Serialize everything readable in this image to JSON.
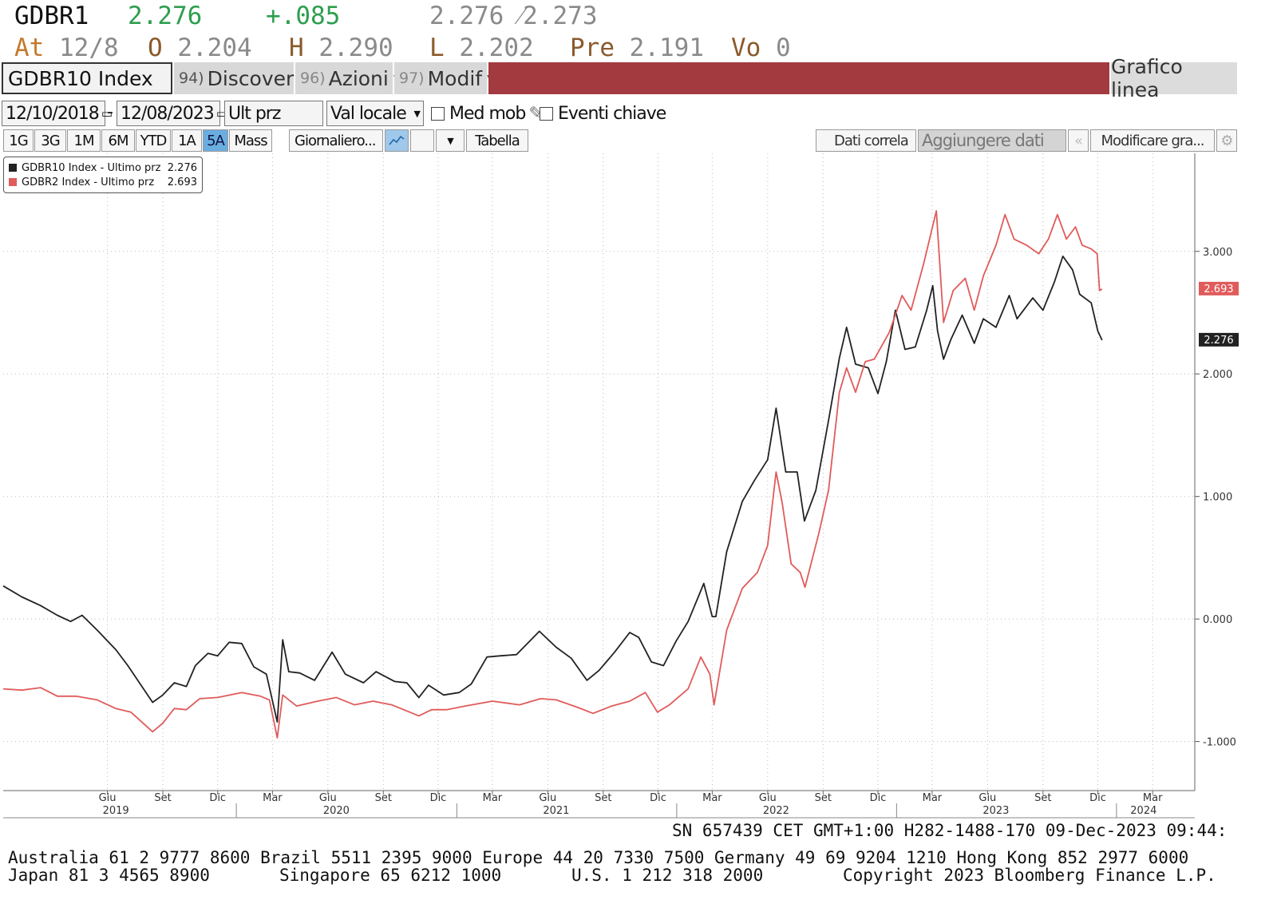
{
  "header": {
    "ticker": "GDBR1",
    "last": "2.276",
    "change": "+.085",
    "bid_ask": "2.276 ⁄2.273",
    "at_label": "At",
    "at_value": "12/8",
    "open_label": "O",
    "open_value": "2.204",
    "high_label": "H",
    "high_value": "2.290",
    "low_label": "L",
    "low_value": "2.202",
    "prev_label": "Pre",
    "prev_value": "2.191",
    "vol_label": "Vo",
    "vol_value": "0"
  },
  "toolbar": {
    "security": "GDBR10 Index",
    "discover_num": "94)",
    "discover": "Discover",
    "azioni_num": "96)",
    "azioni": "Azioni",
    "modif_num": "97)",
    "modif": "Modif",
    "chart_type": "Grafico linea",
    "accent_color": "#a33a3f"
  },
  "controls": {
    "start_date": "12/10/2018",
    "separator": "-",
    "end_date": "12/08/2023",
    "price_field": "Ult prz",
    "currency": "Val locale",
    "moving_avg": "Med mob",
    "key_events": "Eventi chiave"
  },
  "periods": [
    "1G",
    "3G",
    "1M",
    "6M",
    "YTD",
    "1A",
    "5A",
    "Mass"
  ],
  "active_period": "5A",
  "frequency": "Giornaliero...",
  "table_btn": "Tabella",
  "dati_correla": "Dati correla",
  "aggiungere_dati": "Aggiungere dati",
  "modificare": "Modificare gra...",
  "chart_data": {
    "type": "line",
    "x_start": "2018-12-10",
    "x_end": "2023-12-08",
    "xlim": [
      "2018-12-10",
      "2024-05-10"
    ],
    "ylim": [
      -1.4,
      3.8
    ],
    "yticks": [
      -1.0,
      0.0,
      1.0,
      2.0,
      3.0
    ],
    "ytick_labels": [
      "-1.000",
      "0.000",
      "1.000",
      "2.000",
      "3.000"
    ],
    "xticks": [
      {
        "label": "Giu",
        "date": "2019-06-01"
      },
      {
        "label": "Set",
        "date": "2019-09-01"
      },
      {
        "label": "Dic",
        "date": "2019-12-01"
      },
      {
        "label": "Mar",
        "date": "2020-03-01"
      },
      {
        "label": "Giu",
        "date": "2020-06-01"
      },
      {
        "label": "Set",
        "date": "2020-09-01"
      },
      {
        "label": "Dic",
        "date": "2020-12-01"
      },
      {
        "label": "Mar",
        "date": "2021-03-01"
      },
      {
        "label": "Giu",
        "date": "2021-06-01"
      },
      {
        "label": "Set",
        "date": "2021-09-01"
      },
      {
        "label": "Dic",
        "date": "2021-12-01"
      },
      {
        "label": "Mar",
        "date": "2022-03-01"
      },
      {
        "label": "Giu",
        "date": "2022-06-01"
      },
      {
        "label": "Set",
        "date": "2022-09-01"
      },
      {
        "label": "Dic",
        "date": "2022-12-01"
      },
      {
        "label": "Mar",
        "date": "2023-03-01"
      },
      {
        "label": "Giu",
        "date": "2023-06-01"
      },
      {
        "label": "Set",
        "date": "2023-09-01"
      },
      {
        "label": "Dic",
        "date": "2023-12-01"
      },
      {
        "label": "Mar",
        "date": "2024-03-01"
      }
    ],
    "years": [
      {
        "label": "2019",
        "date": "2019-06-15"
      },
      {
        "label": "2020",
        "date": "2020-06-15"
      },
      {
        "label": "2021",
        "date": "2021-06-15"
      },
      {
        "label": "2022",
        "date": "2022-06-15"
      },
      {
        "label": "2023",
        "date": "2023-06-15"
      },
      {
        "label": "2024",
        "date": "2024-02-15"
      }
    ],
    "year_boundaries": [
      "2020-01-01",
      "2021-01-01",
      "2022-01-01",
      "2023-01-01",
      "2024-01-01"
    ],
    "grid": true,
    "legend_position": "top-left",
    "series": [
      {
        "name": "GDBR10 Index - Ultimo prz",
        "last_label": "2.276",
        "color": "#222222",
        "points": [
          [
            "2018-12-10",
            0.27
          ],
          [
            "2019-01-10",
            0.18
          ],
          [
            "2019-02-10",
            0.11
          ],
          [
            "2019-03-10",
            0.03
          ],
          [
            "2019-04-01",
            -0.02
          ],
          [
            "2019-04-20",
            0.03
          ],
          [
            "2019-05-15",
            -0.09
          ],
          [
            "2019-06-15",
            -0.25
          ],
          [
            "2019-07-05",
            -0.38
          ],
          [
            "2019-08-15",
            -0.68
          ],
          [
            "2019-09-01",
            -0.62
          ],
          [
            "2019-09-20",
            -0.52
          ],
          [
            "2019-10-10",
            -0.55
          ],
          [
            "2019-10-25",
            -0.38
          ],
          [
            "2019-11-15",
            -0.28
          ],
          [
            "2019-12-01",
            -0.3
          ],
          [
            "2019-12-20",
            -0.19
          ],
          [
            "2020-01-10",
            -0.2
          ],
          [
            "2020-01-30",
            -0.39
          ],
          [
            "2020-02-20",
            -0.45
          ],
          [
            "2020-03-09",
            -0.84
          ],
          [
            "2020-03-18",
            -0.17
          ],
          [
            "2020-03-28",
            -0.43
          ],
          [
            "2020-04-15",
            -0.44
          ],
          [
            "2020-05-10",
            -0.5
          ],
          [
            "2020-06-08",
            -0.27
          ],
          [
            "2020-06-30",
            -0.45
          ],
          [
            "2020-07-30",
            -0.52
          ],
          [
            "2020-08-20",
            -0.43
          ],
          [
            "2020-09-20",
            -0.51
          ],
          [
            "2020-10-10",
            -0.52
          ],
          [
            "2020-10-30",
            -0.64
          ],
          [
            "2020-11-15",
            -0.54
          ],
          [
            "2020-12-10",
            -0.62
          ],
          [
            "2021-01-05",
            -0.6
          ],
          [
            "2021-01-25",
            -0.53
          ],
          [
            "2021-02-20",
            -0.31
          ],
          [
            "2021-03-15",
            -0.3
          ],
          [
            "2021-04-10",
            -0.29
          ],
          [
            "2021-05-18",
            -0.1
          ],
          [
            "2021-06-15",
            -0.23
          ],
          [
            "2021-07-10",
            -0.32
          ],
          [
            "2021-08-05",
            -0.5
          ],
          [
            "2021-08-25",
            -0.42
          ],
          [
            "2021-09-20",
            -0.27
          ],
          [
            "2021-10-15",
            -0.11
          ],
          [
            "2021-10-30",
            -0.15
          ],
          [
            "2021-11-20",
            -0.35
          ],
          [
            "2021-12-10",
            -0.38
          ],
          [
            "2021-12-31",
            -0.18
          ],
          [
            "2022-01-20",
            -0.02
          ],
          [
            "2022-02-15",
            0.29
          ],
          [
            "2022-03-01",
            0.02
          ],
          [
            "2022-03-07",
            0.02
          ],
          [
            "2022-03-25",
            0.55
          ],
          [
            "2022-04-20",
            0.96
          ],
          [
            "2022-05-10",
            1.13
          ],
          [
            "2022-06-01",
            1.3
          ],
          [
            "2022-06-15",
            1.72
          ],
          [
            "2022-07-01",
            1.2
          ],
          [
            "2022-07-20",
            1.2
          ],
          [
            "2022-08-01",
            0.8
          ],
          [
            "2022-08-20",
            1.05
          ],
          [
            "2022-09-10",
            1.62
          ],
          [
            "2022-09-28",
            2.13
          ],
          [
            "2022-10-10",
            2.38
          ],
          [
            "2022-10-25",
            2.08
          ],
          [
            "2022-11-15",
            2.05
          ],
          [
            "2022-12-01",
            1.84
          ],
          [
            "2022-12-15",
            2.1
          ],
          [
            "2022-12-30",
            2.52
          ],
          [
            "2023-01-15",
            2.2
          ],
          [
            "2023-02-01",
            2.22
          ],
          [
            "2023-02-20",
            2.52
          ],
          [
            "2023-03-02",
            2.72
          ],
          [
            "2023-03-10",
            2.35
          ],
          [
            "2023-03-20",
            2.12
          ],
          [
            "2023-04-01",
            2.28
          ],
          [
            "2023-04-20",
            2.48
          ],
          [
            "2023-05-10",
            2.25
          ],
          [
            "2023-05-25",
            2.45
          ],
          [
            "2023-06-15",
            2.38
          ],
          [
            "2023-07-07",
            2.64
          ],
          [
            "2023-07-20",
            2.45
          ],
          [
            "2023-08-15",
            2.62
          ],
          [
            "2023-09-01",
            2.52
          ],
          [
            "2023-09-20",
            2.75
          ],
          [
            "2023-10-04",
            2.96
          ],
          [
            "2023-10-20",
            2.85
          ],
          [
            "2023-11-01",
            2.65
          ],
          [
            "2023-11-20",
            2.58
          ],
          [
            "2023-12-01",
            2.35
          ],
          [
            "2023-12-08",
            2.276
          ]
        ]
      },
      {
        "name": "GDBR2 Index - Ultimo prz",
        "last_label": "2.693",
        "color": "#e05b5b",
        "points": [
          [
            "2018-12-10",
            -0.57
          ],
          [
            "2019-01-10",
            -0.58
          ],
          [
            "2019-02-10",
            -0.56
          ],
          [
            "2019-03-10",
            -0.63
          ],
          [
            "2019-04-10",
            -0.63
          ],
          [
            "2019-05-15",
            -0.66
          ],
          [
            "2019-06-15",
            -0.73
          ],
          [
            "2019-07-10",
            -0.76
          ],
          [
            "2019-08-15",
            -0.92
          ],
          [
            "2019-09-01",
            -0.85
          ],
          [
            "2019-09-20",
            -0.73
          ],
          [
            "2019-10-10",
            -0.74
          ],
          [
            "2019-11-01",
            -0.65
          ],
          [
            "2019-12-01",
            -0.64
          ],
          [
            "2020-01-10",
            -0.6
          ],
          [
            "2020-02-10",
            -0.63
          ],
          [
            "2020-02-25",
            -0.66
          ],
          [
            "2020-03-09",
            -0.97
          ],
          [
            "2020-03-18",
            -0.62
          ],
          [
            "2020-04-10",
            -0.71
          ],
          [
            "2020-05-15",
            -0.67
          ],
          [
            "2020-06-15",
            -0.64
          ],
          [
            "2020-07-15",
            -0.7
          ],
          [
            "2020-08-15",
            -0.67
          ],
          [
            "2020-09-15",
            -0.7
          ],
          [
            "2020-10-30",
            -0.79
          ],
          [
            "2020-11-20",
            -0.74
          ],
          [
            "2020-12-15",
            -0.74
          ],
          [
            "2021-01-15",
            -0.71
          ],
          [
            "2021-03-01",
            -0.67
          ],
          [
            "2021-04-15",
            -0.7
          ],
          [
            "2021-05-20",
            -0.65
          ],
          [
            "2021-06-15",
            -0.66
          ],
          [
            "2021-07-20",
            -0.72
          ],
          [
            "2021-08-15",
            -0.77
          ],
          [
            "2021-09-15",
            -0.71
          ],
          [
            "2021-10-15",
            -0.67
          ],
          [
            "2021-11-10",
            -0.6
          ],
          [
            "2021-11-30",
            -0.76
          ],
          [
            "2021-12-20",
            -0.7
          ],
          [
            "2022-01-20",
            -0.57
          ],
          [
            "2022-02-10",
            -0.31
          ],
          [
            "2022-02-25",
            -0.45
          ],
          [
            "2022-03-04",
            -0.7
          ],
          [
            "2022-03-25",
            -0.09
          ],
          [
            "2022-04-20",
            0.25
          ],
          [
            "2022-05-15",
            0.38
          ],
          [
            "2022-06-01",
            0.6
          ],
          [
            "2022-06-15",
            1.2
          ],
          [
            "2022-06-25",
            0.95
          ],
          [
            "2022-07-10",
            0.45
          ],
          [
            "2022-07-25",
            0.38
          ],
          [
            "2022-08-02",
            0.26
          ],
          [
            "2022-08-25",
            0.7
          ],
          [
            "2022-09-10",
            1.05
          ],
          [
            "2022-09-28",
            1.85
          ],
          [
            "2022-10-10",
            2.05
          ],
          [
            "2022-10-25",
            1.85
          ],
          [
            "2022-11-10",
            2.1
          ],
          [
            "2022-11-25",
            2.12
          ],
          [
            "2022-12-20",
            2.34
          ],
          [
            "2023-01-10",
            2.64
          ],
          [
            "2023-01-25",
            2.52
          ],
          [
            "2023-02-15",
            2.9
          ],
          [
            "2023-03-08",
            3.33
          ],
          [
            "2023-03-20",
            2.42
          ],
          [
            "2023-04-05",
            2.68
          ],
          [
            "2023-04-25",
            2.78
          ],
          [
            "2023-05-10",
            2.52
          ],
          [
            "2023-05-25",
            2.8
          ],
          [
            "2023-06-15",
            3.05
          ],
          [
            "2023-06-30",
            3.3
          ],
          [
            "2023-07-15",
            3.1
          ],
          [
            "2023-08-05",
            3.05
          ],
          [
            "2023-08-25",
            2.98
          ],
          [
            "2023-09-10",
            3.1
          ],
          [
            "2023-09-25",
            3.3
          ],
          [
            "2023-10-10",
            3.1
          ],
          [
            "2023-10-25",
            3.2
          ],
          [
            "2023-11-05",
            3.05
          ],
          [
            "2023-11-20",
            3.02
          ],
          [
            "2023-11-30",
            2.98
          ],
          [
            "2023-12-04",
            2.68
          ],
          [
            "2023-12-08",
            2.693
          ]
        ]
      }
    ]
  },
  "status_line": "SN 657439 CET   GMT+1:00 H282-1488-170 09-Dec-2023 09:44:",
  "footer_line1": "Australia 61 2 9777 8600 Brazil 5511 2395 9000 Europe 44 20 7330 7500 Germany 49 69 9204 1210 Hong Kong 852 2977 6000",
  "footer_line2_left": "Japan 81 3 4565 8900",
  "footer_line2_mid": "Singapore 65 6212 1000",
  "footer_line2_us": "U.S. 1 212 318 2000",
  "footer_line2_right": "Copyright 2023 Bloomberg Finance L.P."
}
